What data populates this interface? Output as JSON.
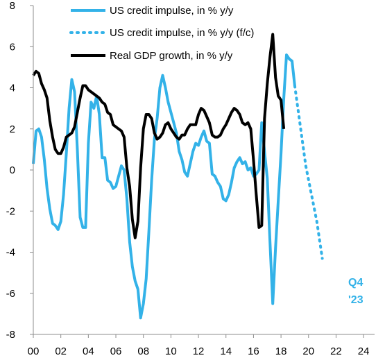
{
  "chart_data": {
    "type": "line",
    "title": "",
    "xlabel": "",
    "ylabel": "",
    "xlim": [
      2000,
      2024.8
    ],
    "ylim": [
      -8,
      8
    ],
    "x_ticks": [
      "00",
      "02",
      "04",
      "06",
      "08",
      "10",
      "12",
      "14",
      "16",
      "18",
      "20",
      "22",
      "24"
    ],
    "y_ticks": [
      "8",
      "6",
      "4",
      "2",
      "0",
      "-2",
      "-4",
      "-6",
      "-8"
    ],
    "grid": false,
    "legend_position": "top",
    "annotation": {
      "line1": "Q4",
      "line2": "'23",
      "color": "#33B2E8"
    },
    "series": [
      {
        "name": "US credit impulse, in % y/y",
        "color": "#33B2E8",
        "style": "solid",
        "points": [
          [
            2000.0,
            0.3
          ],
          [
            2000.2,
            1.9
          ],
          [
            2000.4,
            2.0
          ],
          [
            2000.6,
            1.6
          ],
          [
            2000.8,
            0.5
          ],
          [
            2001.0,
            -0.9
          ],
          [
            2001.2,
            -1.9
          ],
          [
            2001.4,
            -2.6
          ],
          [
            2001.6,
            -2.7
          ],
          [
            2001.8,
            -2.9
          ],
          [
            2002.0,
            -2.5
          ],
          [
            2002.2,
            -1.2
          ],
          [
            2002.4,
            0.8
          ],
          [
            2002.6,
            3.0
          ],
          [
            2002.8,
            4.4
          ],
          [
            2003.0,
            3.8
          ],
          [
            2003.2,
            1.0
          ],
          [
            2003.4,
            -2.3
          ],
          [
            2003.6,
            -2.8
          ],
          [
            2003.8,
            -2.8
          ],
          [
            2004.0,
            1.3
          ],
          [
            2004.2,
            3.3
          ],
          [
            2004.4,
            3.0
          ],
          [
            2004.6,
            3.6
          ],
          [
            2004.8,
            2.7
          ],
          [
            2005.0,
            0.6
          ],
          [
            2005.2,
            0.6
          ],
          [
            2005.4,
            -0.5
          ],
          [
            2005.6,
            -0.6
          ],
          [
            2005.8,
            -0.9
          ],
          [
            2006.0,
            -0.8
          ],
          [
            2006.2,
            -0.3
          ],
          [
            2006.4,
            0.2
          ],
          [
            2006.6,
            0.0
          ],
          [
            2006.8,
            -1.4
          ],
          [
            2007.0,
            -3.5
          ],
          [
            2007.2,
            -4.7
          ],
          [
            2007.4,
            -5.4
          ],
          [
            2007.6,
            -5.8
          ],
          [
            2007.8,
            -7.2
          ],
          [
            2008.0,
            -6.5
          ],
          [
            2008.2,
            -5.3
          ],
          [
            2008.4,
            -3.0
          ],
          [
            2008.6,
            -0.5
          ],
          [
            2008.8,
            1.5
          ],
          [
            2009.0,
            2.5
          ],
          [
            2009.2,
            4.0
          ],
          [
            2009.4,
            4.6
          ],
          [
            2009.6,
            4.0
          ],
          [
            2009.8,
            3.3
          ],
          [
            2010.0,
            2.8
          ],
          [
            2010.2,
            2.3
          ],
          [
            2010.4,
            1.8
          ],
          [
            2010.6,
            0.9
          ],
          [
            2010.8,
            0.5
          ],
          [
            2011.0,
            -0.1
          ],
          [
            2011.2,
            -0.3
          ],
          [
            2011.4,
            0.3
          ],
          [
            2011.6,
            0.9
          ],
          [
            2011.8,
            1.3
          ],
          [
            2012.0,
            1.2
          ],
          [
            2012.2,
            1.6
          ],
          [
            2012.4,
            1.9
          ],
          [
            2012.6,
            1.4
          ],
          [
            2012.8,
            1.3
          ],
          [
            2013.0,
            -0.2
          ],
          [
            2013.2,
            -0.3
          ],
          [
            2013.4,
            -0.6
          ],
          [
            2013.6,
            -0.8
          ],
          [
            2013.8,
            -1.4
          ],
          [
            2014.0,
            -1.5
          ],
          [
            2014.2,
            -1.2
          ],
          [
            2014.4,
            -0.6
          ],
          [
            2014.6,
            0.1
          ],
          [
            2014.8,
            0.4
          ],
          [
            2015.0,
            0.6
          ],
          [
            2015.2,
            0.3
          ],
          [
            2015.4,
            0.4
          ],
          [
            2015.6,
            0.0
          ],
          [
            2015.8,
            0.1
          ],
          [
            2016.0,
            -0.3
          ],
          [
            2016.2,
            -0.2
          ],
          [
            2016.4,
            0.0
          ],
          [
            2016.6,
            2.3
          ],
          [
            2016.8,
            0.9
          ],
          [
            2017.0,
            -0.4
          ],
          [
            2017.2,
            -3.5
          ],
          [
            2017.4,
            -6.5
          ],
          [
            2017.6,
            -3.8
          ],
          [
            2017.8,
            -1.5
          ],
          [
            2018.0,
            0.8
          ],
          [
            2018.2,
            3.5
          ],
          [
            2018.4,
            5.6
          ],
          [
            2018.6,
            5.4
          ],
          [
            2018.8,
            5.3
          ],
          [
            2019.0,
            4.1
          ]
        ]
      },
      {
        "name": "US credit impulse, in % y/y (f/c)",
        "color": "#33B2E8",
        "style": "dotted",
        "points": [
          [
            2019.0,
            4.1
          ],
          [
            2019.8,
            0.2
          ],
          [
            2020.6,
            -2.5
          ],
          [
            2021.0,
            -4.3
          ]
        ]
      },
      {
        "name": "Real GDP growth, in % y/y",
        "color": "#000000",
        "style": "solid",
        "points": [
          [
            2000.0,
            4.6
          ],
          [
            2000.2,
            4.8
          ],
          [
            2000.4,
            4.7
          ],
          [
            2000.6,
            4.2
          ],
          [
            2000.8,
            3.9
          ],
          [
            2001.0,
            3.5
          ],
          [
            2001.2,
            2.4
          ],
          [
            2001.4,
            1.6
          ],
          [
            2001.6,
            1.0
          ],
          [
            2001.8,
            0.8
          ],
          [
            2002.0,
            0.8
          ],
          [
            2002.2,
            1.1
          ],
          [
            2002.4,
            1.6
          ],
          [
            2002.6,
            1.7
          ],
          [
            2002.8,
            1.8
          ],
          [
            2003.0,
            2.1
          ],
          [
            2003.2,
            2.8
          ],
          [
            2003.4,
            3.5
          ],
          [
            2003.6,
            4.1
          ],
          [
            2003.8,
            4.1
          ],
          [
            2004.0,
            3.9
          ],
          [
            2004.2,
            3.8
          ],
          [
            2004.4,
            3.7
          ],
          [
            2004.6,
            3.6
          ],
          [
            2004.8,
            3.5
          ],
          [
            2005.0,
            3.3
          ],
          [
            2005.2,
            3.2
          ],
          [
            2005.4,
            2.8
          ],
          [
            2005.6,
            2.7
          ],
          [
            2005.8,
            2.2
          ],
          [
            2006.0,
            2.1
          ],
          [
            2006.2,
            2.0
          ],
          [
            2006.4,
            1.9
          ],
          [
            2006.6,
            1.6
          ],
          [
            2006.8,
            0.1
          ],
          [
            2007.0,
            -0.8
          ],
          [
            2007.2,
            -2.4
          ],
          [
            2007.4,
            -3.3
          ],
          [
            2007.6,
            -2.5
          ],
          [
            2007.8,
            0.1
          ],
          [
            2008.0,
            2.0
          ],
          [
            2008.2,
            2.7
          ],
          [
            2008.4,
            2.7
          ],
          [
            2008.6,
            2.5
          ],
          [
            2008.8,
            1.8
          ],
          [
            2009.0,
            1.5
          ],
          [
            2009.2,
            1.6
          ],
          [
            2009.4,
            1.8
          ],
          [
            2009.6,
            2.2
          ],
          [
            2009.8,
            2.3
          ],
          [
            2010.0,
            2.0
          ],
          [
            2010.2,
            1.8
          ],
          [
            2010.4,
            1.6
          ],
          [
            2010.6,
            1.5
          ],
          [
            2010.8,
            1.7
          ],
          [
            2011.0,
            1.7
          ],
          [
            2011.2,
            2.0
          ],
          [
            2011.4,
            2.2
          ],
          [
            2011.6,
            2.2
          ],
          [
            2011.8,
            2.2
          ],
          [
            2012.0,
            2.7
          ],
          [
            2012.2,
            3.0
          ],
          [
            2012.4,
            2.9
          ],
          [
            2012.6,
            2.6
          ],
          [
            2012.8,
            2.3
          ],
          [
            2013.0,
            1.7
          ],
          [
            2013.2,
            1.6
          ],
          [
            2013.4,
            1.6
          ],
          [
            2013.6,
            1.7
          ],
          [
            2013.8,
            2.0
          ],
          [
            2014.0,
            2.2
          ],
          [
            2014.2,
            2.5
          ],
          [
            2014.4,
            2.8
          ],
          [
            2014.6,
            3.0
          ],
          [
            2014.8,
            2.9
          ],
          [
            2015.0,
            2.7
          ],
          [
            2015.2,
            2.3
          ],
          [
            2015.4,
            2.2
          ],
          [
            2015.6,
            2.3
          ],
          [
            2015.8,
            2.0
          ],
          [
            2016.0,
            0.5
          ],
          [
            2016.2,
            -1.2
          ],
          [
            2016.4,
            -2.8
          ],
          [
            2016.6,
            -2.7
          ],
          [
            2016.8,
            2.5
          ],
          [
            2017.0,
            4.2
          ],
          [
            2017.2,
            5.5
          ],
          [
            2017.4,
            6.6
          ],
          [
            2017.6,
            4.5
          ],
          [
            2017.8,
            3.6
          ],
          [
            2018.0,
            3.4
          ],
          [
            2018.2,
            2.0
          ]
        ]
      }
    ]
  }
}
